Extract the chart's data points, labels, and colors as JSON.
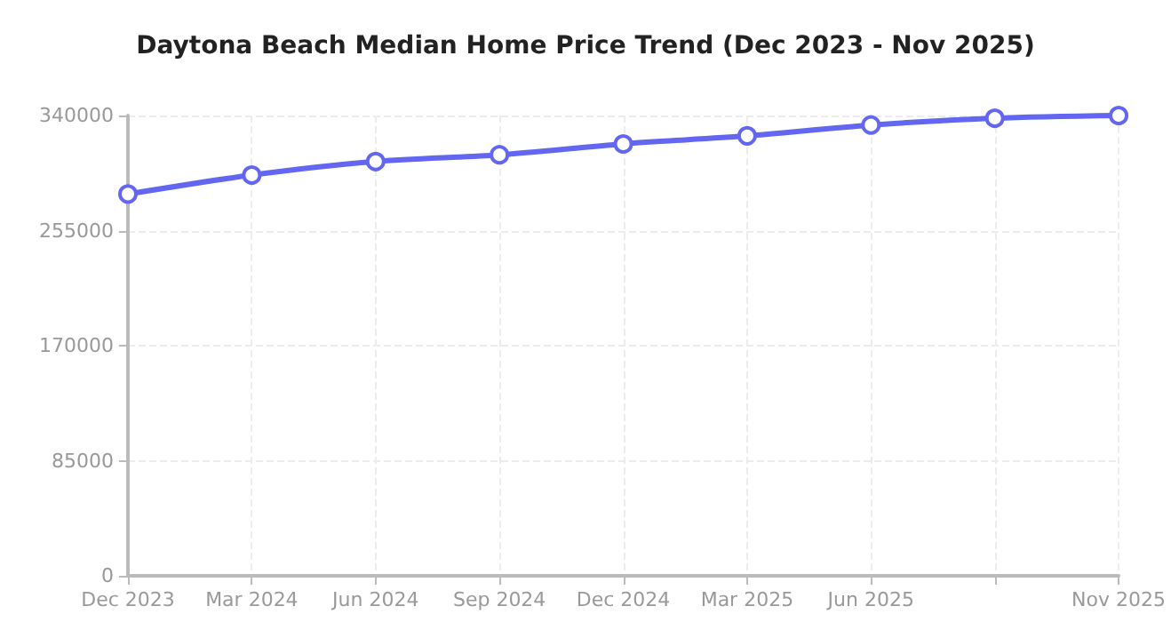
{
  "chart_data": {
    "type": "line",
    "title": "Daytona Beach Median Home Price Trend (Dec 2023 - Nov 2025)",
    "categories": [
      "Dec 2023",
      "Mar 2024",
      "Jun 2024",
      "Sep 2024",
      "Dec 2024",
      "Mar 2025",
      "Jun 2025",
      null,
      "Nov 2025"
    ],
    "series": [
      {
        "color": "#6366f1",
        "values": [
          282000,
          296000,
          306000,
          311000,
          319000,
          325000,
          333000,
          338000,
          340000
        ]
      }
    ],
    "ylim": [
      0,
      340000
    ],
    "yticks": [
      0,
      85000,
      170000,
      255000,
      340000
    ],
    "grid": true,
    "marker": "circle",
    "line_style": "solid"
  }
}
